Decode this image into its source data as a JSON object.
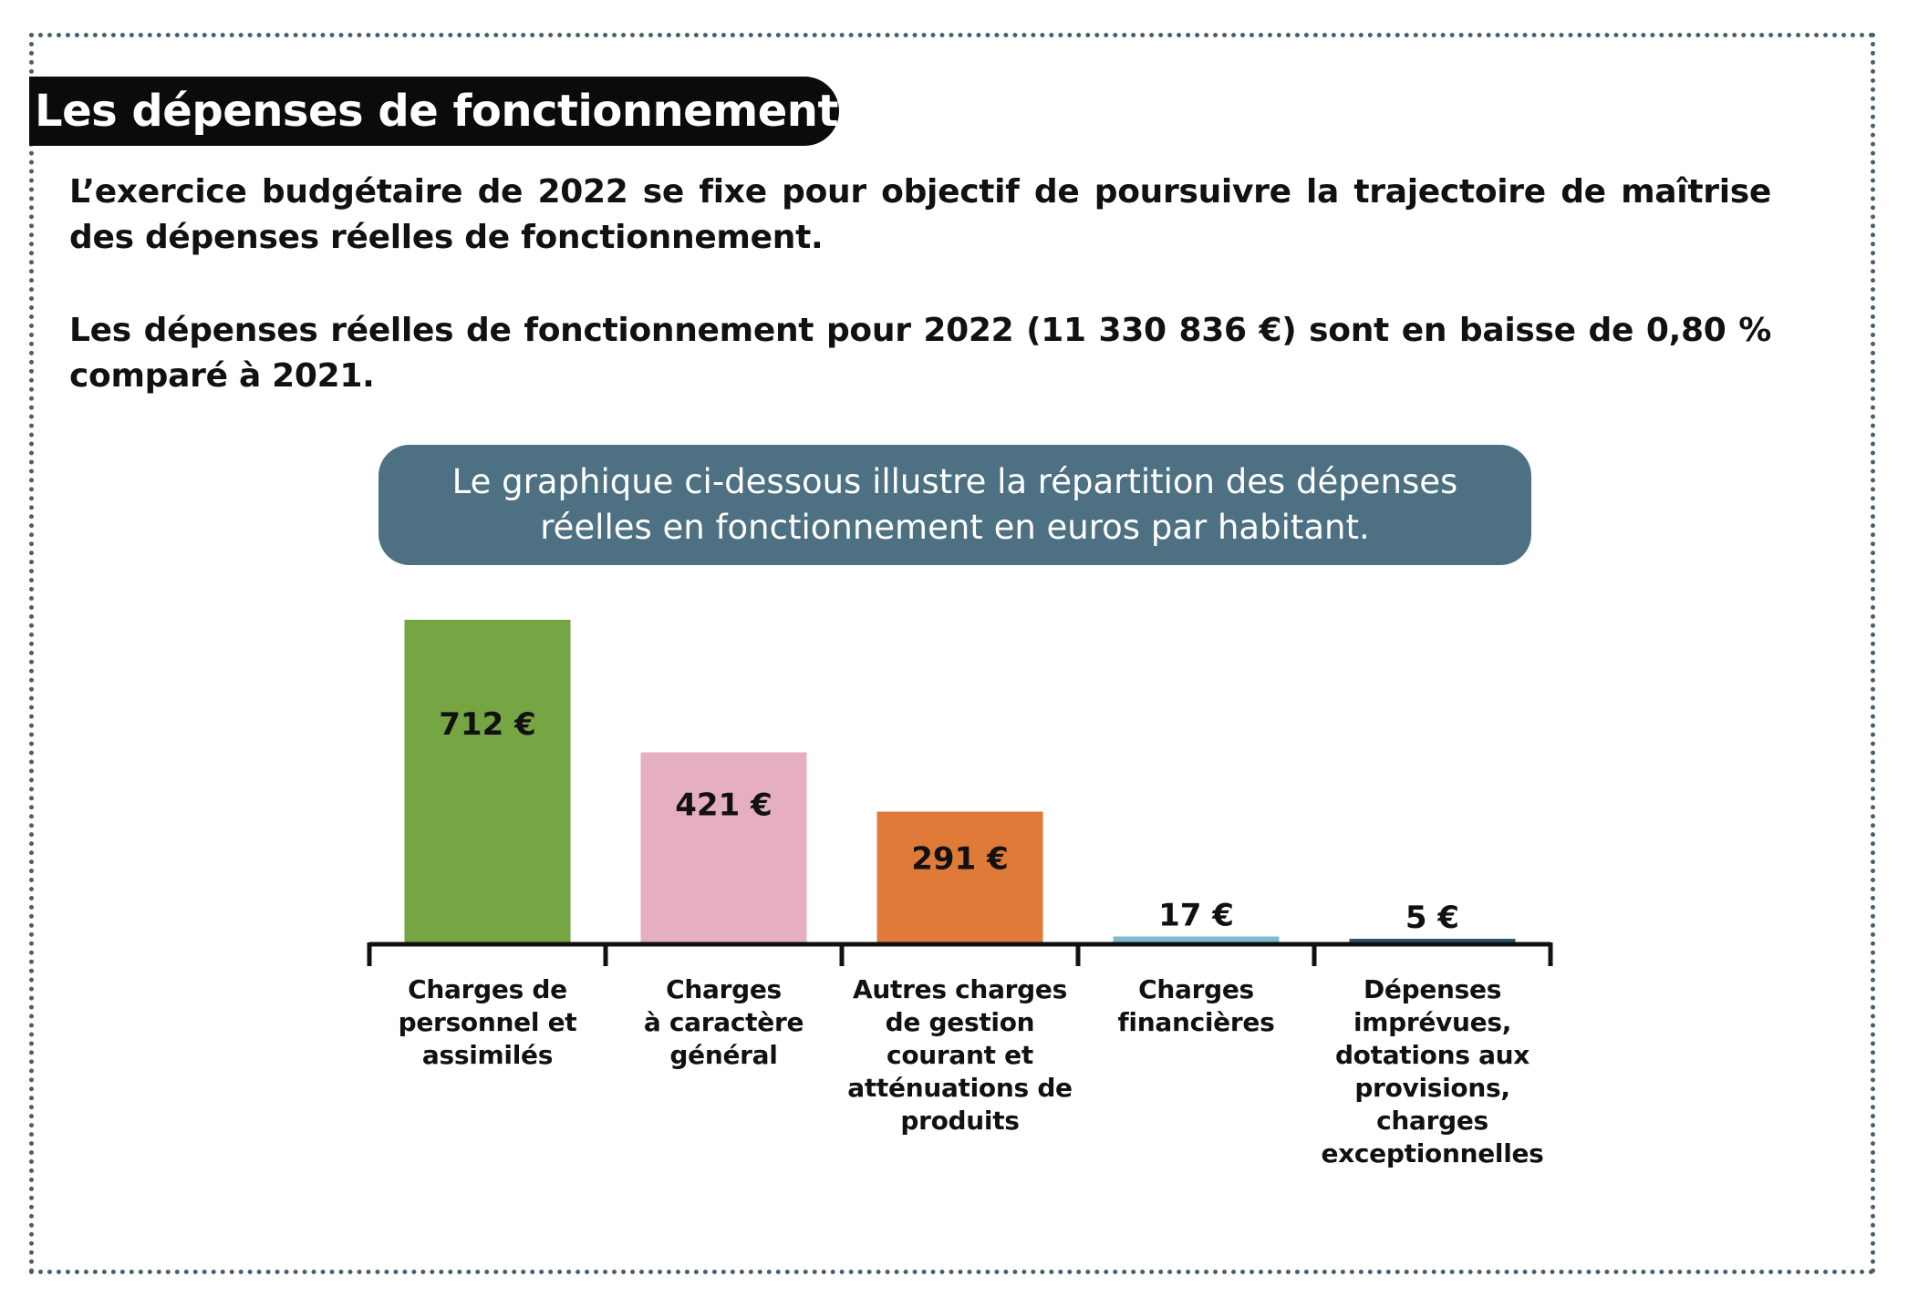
{
  "title": "Les dépenses de fonctionnement",
  "paragraph1": "L’exercice budgétaire de 2022 se fixe pour objectif de poursuivre la trajectoire de maîtrise des dépenses réelles de fonctionnement.",
  "paragraph2": "Les dépenses réelles de fonctionnement pour 2022 (11 330 836 €) sont en baisse de 0,80 % comparé à 2021.",
  "caption": "Le graphique ci-dessous illustre la répartition des dépenses réelles en fonctionnement en euros par habitant.",
  "colors": {
    "title_bg": "#0b0b0b",
    "caption_bg": "#4d7183",
    "frame": "#4a5f6e"
  },
  "chart_data": {
    "type": "bar",
    "categories": [
      "Charges de personnel et assimilés",
      "Charges à caractère général",
      "Autres charges de gestion courant et atténuations de produits",
      "Charges financières",
      "Dépenses imprévues, dotations aux provisions, charges exceptionnelles"
    ],
    "values": [
      712,
      421,
      291,
      17,
      5
    ],
    "value_labels": [
      "712 €",
      "421 €",
      "291 €",
      "17 €",
      "5 €"
    ],
    "colors": [
      "#76a543",
      "#e6aec1",
      "#e07a38",
      "#7fbbd3",
      "#2c5570"
    ],
    "unit": "€ par habitant",
    "ylim": [
      0,
      712
    ],
    "grid": false,
    "legend": "none"
  }
}
